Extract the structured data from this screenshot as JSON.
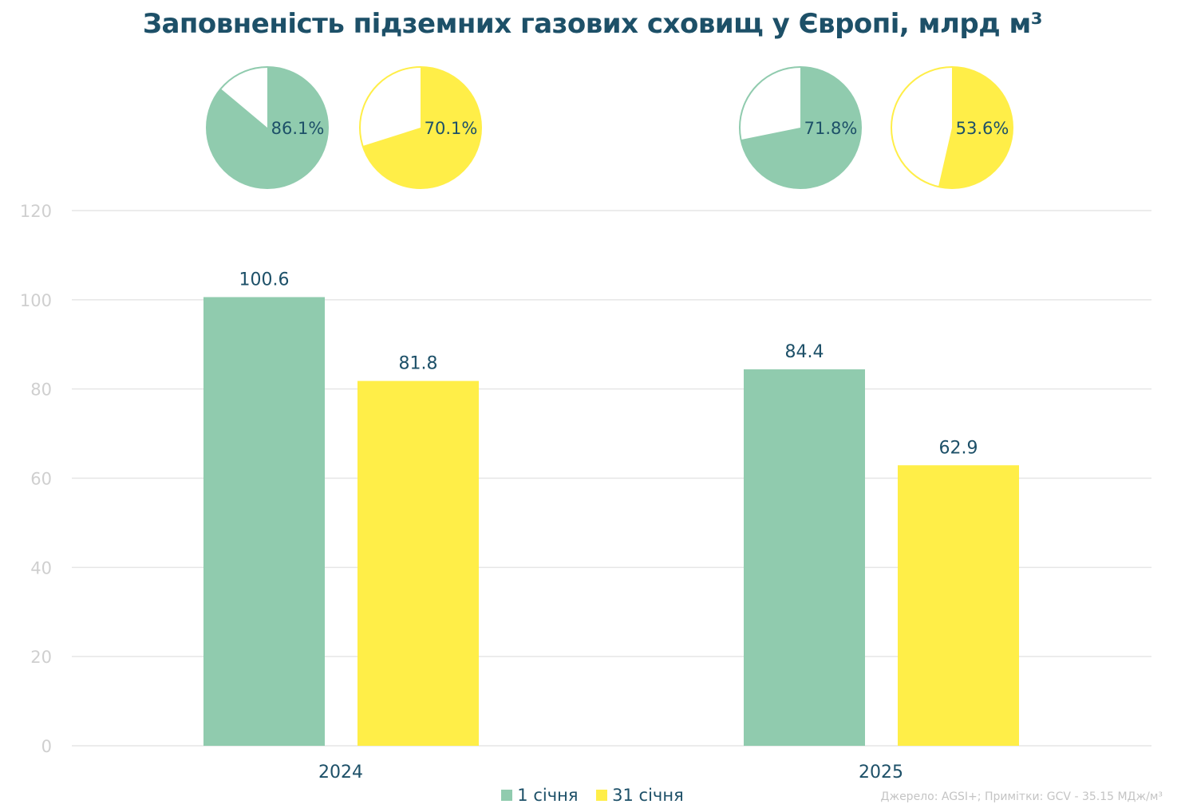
{
  "title": "Заповненість підземних газових сховищ у Європі, млрд м³",
  "source_note": "Джерело: AGSI+; Примітки: GCV - 35.15 МДж/м³",
  "colors": {
    "jan1": "#90cbae",
    "jan31": "#ffee48",
    "text": "#1d5068",
    "grid": "#e6e6e6",
    "axis_text": "#cfcfcf"
  },
  "chart_data": {
    "type": "bar",
    "categories": [
      "2024",
      "2025"
    ],
    "series": [
      {
        "name": "1 січня",
        "values": [
          100.6,
          84.4
        ],
        "labels": [
          "100.6",
          "84.4"
        ],
        "fill_pct": [
          86.1,
          71.8
        ],
        "fill_labels": [
          "86.1%",
          "71.8%"
        ]
      },
      {
        "name": "31 січня",
        "values": [
          81.8,
          62.9
        ],
        "labels": [
          "81.8",
          "62.9"
        ],
        "fill_pct": [
          70.1,
          53.6
        ],
        "fill_labels": [
          "70.1%",
          "53.6%"
        ]
      }
    ],
    "ylim": [
      0,
      120
    ],
    "yticks": [
      0,
      20,
      40,
      60,
      80,
      100,
      120
    ],
    "ytick_labels": [
      "0",
      "20",
      "40",
      "60",
      "80",
      "100",
      "120"
    ],
    "grid": true,
    "legend": "bottom"
  }
}
